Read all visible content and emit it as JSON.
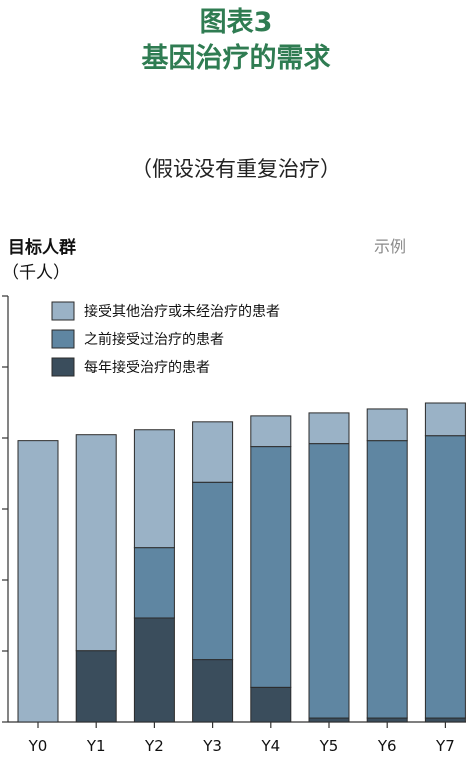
{
  "header": {
    "title_line1": "图表3",
    "title_line2": "基因治疗的需求",
    "subtitle": "（假设没有重复治疗）"
  },
  "ylabel_line1": "目标人群",
  "ylabel_line2": "（千人）",
  "example_label": "示例",
  "chart_data": {
    "type": "bar",
    "stacked": true,
    "categories": [
      "Y0",
      "Y1",
      "Y2",
      "Y3",
      "Y4",
      "Y5",
      "Y6",
      "Y7"
    ],
    "series": [
      {
        "name": "每年接受治疗的患者",
        "color": "#3a4d5c",
        "values": [
          0,
          72,
          105,
          63,
          35,
          4,
          4,
          4
        ]
      },
      {
        "name": "之前接受过治疗的患者",
        "color": "#5f86a2",
        "values": [
          0,
          0,
          71,
          179,
          243,
          277,
          280,
          285
        ]
      },
      {
        "name": "接受其他治疗或未经治疗的患者",
        "color": "#9ab2c6",
        "values": [
          284,
          218,
          119,
          61,
          31,
          31,
          32,
          33
        ]
      }
    ],
    "legend_order": [
      "接受其他治疗或未经治疗的患者",
      "之前接受过治疗的患者",
      "每年接受治疗的患者"
    ],
    "legend_position": "top-left",
    "ylim": [
      0,
      430
    ],
    "ytick_count": 6,
    "grid": false
  }
}
